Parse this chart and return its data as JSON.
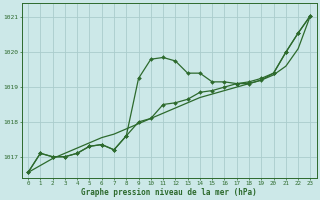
{
  "x": [
    0,
    1,
    2,
    3,
    4,
    5,
    6,
    7,
    8,
    9,
    10,
    11,
    12,
    13,
    14,
    15,
    16,
    17,
    18,
    19,
    20,
    21,
    22,
    23
  ],
  "y_jagged": [
    1016.55,
    1017.1,
    1017.0,
    1017.0,
    1017.1,
    1017.3,
    1017.35,
    1017.2,
    1017.6,
    1019.25,
    1019.8,
    1019.85,
    1019.75,
    1019.4,
    1019.4,
    1019.15,
    1019.15,
    1019.1,
    1019.1,
    1019.2,
    1019.4,
    1020.0,
    1020.55,
    1021.05
  ],
  "y_smooth": [
    1016.55,
    1017.1,
    1017.0,
    1017.0,
    1017.1,
    1017.3,
    1017.35,
    1017.2,
    1017.6,
    1018.0,
    1018.1,
    1018.5,
    1018.55,
    1018.65,
    1018.85,
    1018.9,
    1019.0,
    1019.1,
    1019.15,
    1019.25,
    1019.4,
    1020.0,
    1020.55,
    1021.05
  ],
  "y_linear": [
    1016.55,
    1016.75,
    1016.95,
    1017.1,
    1017.25,
    1017.4,
    1017.55,
    1017.65,
    1017.8,
    1017.95,
    1018.1,
    1018.25,
    1018.4,
    1018.55,
    1018.7,
    1018.8,
    1018.9,
    1019.0,
    1019.1,
    1019.2,
    1019.35,
    1019.6,
    1020.1,
    1021.05
  ],
  "line_color": "#2d6a2d",
  "bg_color": "#cce8e8",
  "grid_color": "#aacccc",
  "xlabel": "Graphe pression niveau de la mer (hPa)",
  "yticks": [
    1017,
    1018,
    1019,
    1020,
    1021
  ],
  "xticks": [
    0,
    1,
    2,
    3,
    4,
    5,
    6,
    7,
    8,
    9,
    10,
    11,
    12,
    13,
    14,
    15,
    16,
    17,
    18,
    19,
    20,
    21,
    22,
    23
  ],
  "ylim": [
    1016.4,
    1021.4
  ],
  "xlim": [
    -0.5,
    23.5
  ]
}
